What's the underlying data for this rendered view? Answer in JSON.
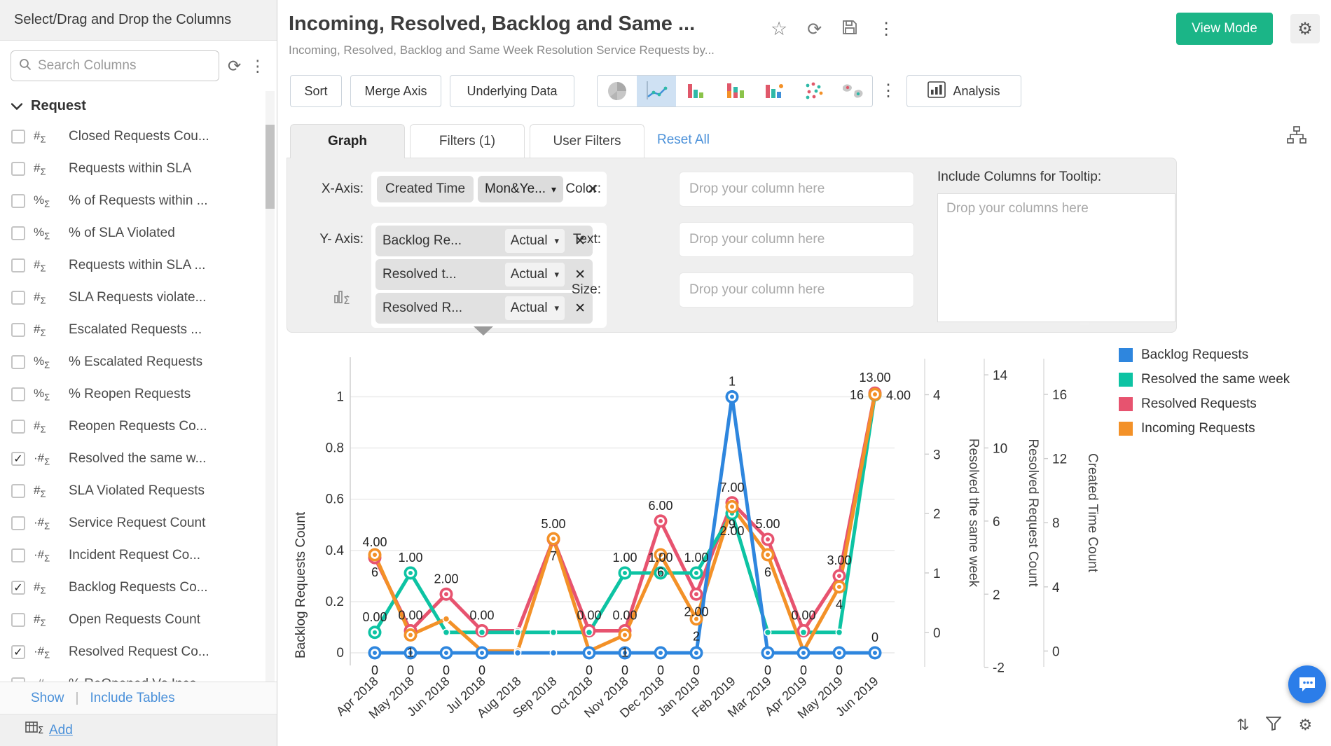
{
  "sidebar": {
    "header": "Select/Drag and Drop the Columns",
    "search_placeholder": "Search Columns",
    "group_label": "Request",
    "items": [
      {
        "label": "Closed Requests Cou...",
        "type": "num",
        "checked": false
      },
      {
        "label": "Requests within SLA",
        "type": "num",
        "checked": false
      },
      {
        "label": "% of Requests within ...",
        "type": "pct",
        "checked": false
      },
      {
        "label": "% of SLA Violated",
        "type": "pct",
        "checked": false
      },
      {
        "label": "Requests within SLA ...",
        "type": "num",
        "checked": false
      },
      {
        "label": "SLA Requests violate...",
        "type": "num",
        "checked": false
      },
      {
        "label": "Escalated Requests ...",
        "type": "num",
        "checked": false
      },
      {
        "label": "% Escalated Requests",
        "type": "pct",
        "checked": false
      },
      {
        "label": "% Reopen Requests",
        "type": "pct",
        "checked": false
      },
      {
        "label": "Reopen Requests Co...",
        "type": "num",
        "checked": false
      },
      {
        "label": "Resolved the same w...",
        "type": "num_dot",
        "checked": true
      },
      {
        "label": "SLA Violated Requests",
        "type": "num",
        "checked": false
      },
      {
        "label": "Service Request Count",
        "type": "num_dot",
        "checked": false
      },
      {
        "label": "Incident Request Co...",
        "type": "num_dot",
        "checked": false
      },
      {
        "label": "Backlog Requests Co...",
        "type": "num",
        "checked": true
      },
      {
        "label": "Open Requests Count",
        "type": "num",
        "checked": false
      },
      {
        "label": "Resolved Request Co...",
        "type": "num_dot",
        "checked": true
      },
      {
        "label": "% ReOpened Vs Inco...",
        "type": "num_dot",
        "checked": false
      }
    ],
    "footer": {
      "show": "Show",
      "include_tables": "Include Tables",
      "add": "Add"
    }
  },
  "header": {
    "title": "Incoming, Resolved, Backlog and Same ...",
    "subtitle": "Incoming, Resolved, Backlog and Same Week Resolution Service Requests by...",
    "view_mode": "View Mode"
  },
  "toolbar": {
    "sort": "Sort",
    "merge_axis": "Merge Axis",
    "underlying_data": "Underlying Data",
    "analysis": "Analysis",
    "chart_types": [
      "pie-chart",
      "line-chart",
      "bar-chart",
      "stacked-bar-chart",
      "bar-combo-chart",
      "scatter-chart",
      "bubble-map-chart"
    ],
    "selected_chart_type": "line-chart"
  },
  "tabs": {
    "graph": "Graph",
    "filters": "Filters (1)",
    "user_filters": "User Filters",
    "reset_all": "Reset All"
  },
  "config": {
    "x_axis_label": "X-Axis:",
    "x_field": "Created Time",
    "x_agg": "Mon&Ye...",
    "y_axis_label": "Y- Axis:",
    "y_fields": [
      {
        "name": "Backlog Re...",
        "agg": "Actual"
      },
      {
        "name": "Resolved t...",
        "agg": "Actual"
      },
      {
        "name": "Resolved R...",
        "agg": "Actual"
      }
    ],
    "color_label": "Color:",
    "text_label": "Text:",
    "size_label": "Size:",
    "drop_placeholder": "Drop your column here",
    "tooltip_label": "Include Columns for Tooltip:",
    "tooltip_placeholder": "Drop your columns here"
  },
  "chart_data": {
    "type": "line",
    "title": "",
    "grid": true,
    "legend_position": "right",
    "categories": [
      "Apr 2018",
      "May 2018",
      "Jun 2018",
      "Jul 2018",
      "Aug 2018",
      "Sep 2018",
      "Oct 2018",
      "Nov 2018",
      "Dec 2018",
      "Jan 2019",
      "Feb 2019",
      "Mar 2019",
      "Apr 2019",
      "May 2019",
      "Jun 2019"
    ],
    "series": [
      {
        "name": "Backlog Requests",
        "color": "#2e86de",
        "axis": {
          "title": "Backlog Requests Count",
          "position": "left",
          "ticks": [
            1,
            0.8,
            0.6,
            0.4,
            0.2,
            0
          ],
          "min": 0,
          "max": 1,
          "f0": 0,
          "f1": 0.85
        },
        "values": [
          0,
          0,
          0,
          0,
          0,
          0,
          0,
          0,
          0,
          0,
          1,
          0,
          0,
          0,
          0
        ],
        "labels": [
          {
            "t": "0",
            "p": "below"
          },
          {
            "t": "0",
            "p": "below"
          },
          {
            "t": "0",
            "p": "below"
          },
          {
            "t": "0",
            "p": "below"
          },
          null,
          null,
          {
            "t": "0",
            "p": "below"
          },
          {
            "t": "0",
            "p": "below"
          },
          {
            "t": "0",
            "p": "below"
          },
          {
            "t": "0",
            "p": "below"
          },
          {
            "t": "1",
            "p": "above"
          },
          {
            "t": "0",
            "p": "below"
          },
          {
            "t": "0",
            "p": "below"
          },
          {
            "t": "0",
            "p": "below"
          },
          {
            "t": "0",
            "p": "above"
          }
        ]
      },
      {
        "name": "Resolved the same week",
        "color": "#0dc3a3",
        "axis": {
          "title": "Resolved the same week",
          "position": "right",
          "ticks": [
            4,
            3,
            2,
            1,
            0
          ],
          "min": 0,
          "max": 4,
          "f0": 0.068,
          "f1": 0.857
        },
        "values": [
          0,
          1,
          0,
          0,
          0,
          0,
          0,
          1,
          1,
          1,
          2,
          0,
          0,
          0,
          4
        ],
        "labels": [
          {
            "t": "0.00",
            "p": "above"
          },
          {
            "t": "1.00",
            "p": "above"
          },
          null,
          null,
          null,
          null,
          null,
          {
            "t": "1.00",
            "p": "above"
          },
          {
            "t": "1.00",
            "p": "above"
          },
          {
            "t": "1.00",
            "p": "above"
          },
          {
            "t": "2.00",
            "p": "below"
          },
          null,
          null,
          null,
          {
            "t": "4.00",
            "p": "right"
          }
        ]
      },
      {
        "name": "Resolved Requests",
        "color": "#e7536f",
        "axis": {
          "title": "Resolved Request Count",
          "position": "right",
          "ticks": [
            14,
            10,
            6,
            2,
            -2
          ],
          "min": -2,
          "max": 14,
          "f0": -0.048,
          "f1": 0.923
        },
        "values": [
          4,
          0,
          2,
          0,
          0,
          5,
          0,
          0,
          6,
          2,
          7,
          5,
          0,
          3,
          13
        ],
        "labels": [
          {
            "t": "4.00",
            "p": "above"
          },
          {
            "t": "0.00",
            "p": "above"
          },
          {
            "t": "2.00",
            "p": "above"
          },
          {
            "t": "0.00",
            "p": "above"
          },
          null,
          {
            "t": "5.00",
            "p": "above"
          },
          {
            "t": "0.00",
            "p": "above"
          },
          {
            "t": "0.00",
            "p": "above"
          },
          {
            "t": "6.00",
            "p": "above"
          },
          {
            "t": "2.00",
            "p": "below"
          },
          {
            "t": "7.00",
            "p": "above"
          },
          {
            "t": "5.00",
            "p": "above"
          },
          {
            "t": "0.00",
            "p": "above"
          },
          {
            "t": "3.00",
            "p": "above"
          },
          {
            "t": "13.00",
            "p": "above"
          }
        ]
      },
      {
        "name": "Incoming Requests",
        "color": "#f39128",
        "axis": {
          "title": "Created Time Count",
          "position": "right",
          "ticks": [
            16,
            12,
            8,
            4,
            0
          ],
          "min": 0,
          "max": 16,
          "f0": 0.006,
          "f1": 0.858
        },
        "values": [
          6,
          1,
          2,
          0,
          0,
          7,
          0,
          1,
          6,
          2,
          9,
          6,
          0,
          4,
          16
        ],
        "labels": [
          {
            "t": "6",
            "p": "below"
          },
          {
            "t": "1",
            "p": "below"
          },
          null,
          null,
          null,
          {
            "t": "7",
            "p": "below"
          },
          null,
          {
            "t": "1",
            "p": "below"
          },
          {
            "t": "6",
            "p": "below"
          },
          {
            "t": "2",
            "p": "below"
          },
          {
            "t": "9",
            "p": "below"
          },
          {
            "t": "6",
            "p": "below"
          },
          null,
          {
            "t": "4",
            "p": "below"
          },
          {
            "t": "16",
            "p": "left"
          }
        ]
      }
    ]
  },
  "colors": {
    "accent_green": "#1bb587",
    "link_blue": "#4a90d9",
    "selected_icon_bg": "#cfe1f3",
    "chat_blue": "#2b7de9"
  }
}
